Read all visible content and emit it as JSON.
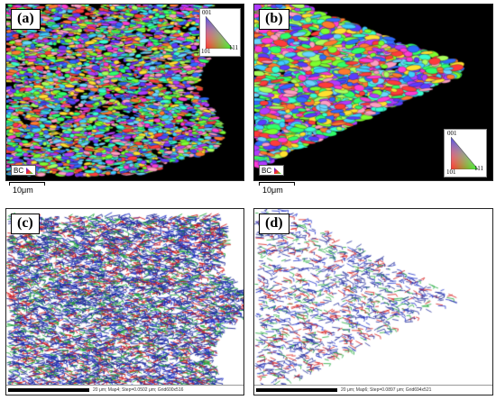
{
  "panels": [
    {
      "label": "(a)",
      "legend": {
        "top": "001",
        "left": "101",
        "right": "111"
      },
      "bc": "BC",
      "scalebar": "10μm"
    },
    {
      "label": "(b)",
      "legend": {
        "top": "001",
        "left": "101",
        "right": "111"
      },
      "bc": "BC",
      "scalebar": "10μm"
    },
    {
      "label": "(c)",
      "footer": "20 μm; Map4; Step=0.0502 μm; Grid600x516"
    },
    {
      "label": "(d)",
      "footer": "20 μm; Map6; Step=0.0897 μm; Grid694x521"
    }
  ]
}
